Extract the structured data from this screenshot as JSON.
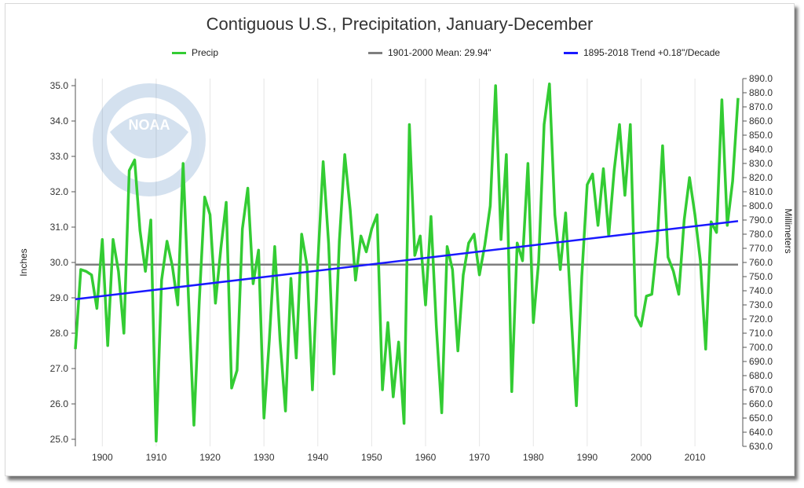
{
  "chart_data": {
    "type": "line",
    "title": "Contiguous U.S., Precipitation, January-December",
    "ylabel": "Inches",
    "ylabel_right": "Millimeters",
    "xlim": [
      1895,
      2018
    ],
    "ylim": [
      24.8,
      35.2
    ],
    "ylim_right_mm": [
      630.0,
      890.0
    ],
    "x_ticks": [
      1900,
      1910,
      1920,
      1930,
      1940,
      1950,
      1960,
      1970,
      1980,
      1990,
      2000,
      2010
    ],
    "y_ticks": [
      "25.0",
      "26.0",
      "27.0",
      "28.0",
      "29.0",
      "30.0",
      "31.0",
      "32.0",
      "33.0",
      "34.0",
      "35.0"
    ],
    "y_ticks_right": [
      "630.0",
      "640.0",
      "650.0",
      "660.0",
      "670.0",
      "680.0",
      "690.0",
      "700.0",
      "710.0",
      "720.0",
      "730.0",
      "740.0",
      "750.0",
      "760.0",
      "770.0",
      "780.0",
      "790.0",
      "800.0",
      "810.0",
      "820.0",
      "830.0",
      "840.0",
      "850.0",
      "860.0",
      "870.0",
      "880.0",
      "890.0"
    ],
    "grid": "vertical",
    "legend_position": "top",
    "series": [
      {
        "name": "Precip",
        "color": "#33cc33",
        "x": [
          1895,
          1896,
          1897,
          1898,
          1899,
          1900,
          1901,
          1902,
          1903,
          1904,
          1905,
          1906,
          1907,
          1908,
          1909,
          1910,
          1911,
          1912,
          1913,
          1914,
          1915,
          1916,
          1917,
          1918,
          1919,
          1920,
          1921,
          1922,
          1923,
          1924,
          1925,
          1926,
          1927,
          1928,
          1929,
          1930,
          1931,
          1932,
          1933,
          1934,
          1935,
          1936,
          1937,
          1938,
          1939,
          1940,
          1941,
          1942,
          1943,
          1944,
          1945,
          1946,
          1947,
          1948,
          1949,
          1950,
          1951,
          1952,
          1953,
          1954,
          1955,
          1956,
          1957,
          1958,
          1959,
          1960,
          1961,
          1962,
          1963,
          1964,
          1965,
          1966,
          1967,
          1968,
          1969,
          1970,
          1971,
          1972,
          1973,
          1974,
          1975,
          1976,
          1977,
          1978,
          1979,
          1980,
          1981,
          1982,
          1983,
          1984,
          1985,
          1986,
          1987,
          1988,
          1989,
          1990,
          1991,
          1992,
          1993,
          1994,
          1995,
          1996,
          1997,
          1998,
          1999,
          2000,
          2001,
          2002,
          2003,
          2004,
          2005,
          2006,
          2007,
          2008,
          2009,
          2010,
          2011,
          2012,
          2013,
          2014,
          2015,
          2016,
          2017,
          2018
        ],
        "values": [
          27.55,
          29.8,
          29.75,
          29.65,
          28.7,
          30.65,
          27.65,
          30.65,
          29.75,
          28.0,
          32.6,
          32.9,
          30.9,
          29.75,
          31.2,
          24.95,
          29.5,
          30.6,
          29.9,
          28.8,
          32.8,
          29.0,
          25.4,
          28.9,
          31.85,
          31.35,
          28.85,
          30.4,
          31.7,
          26.45,
          26.95,
          30.95,
          32.1,
          29.4,
          30.35,
          25.6,
          27.8,
          30.45,
          27.8,
          25.8,
          29.55,
          27.3,
          30.8,
          29.9,
          26.4,
          30.0,
          32.85,
          30.55,
          26.85,
          30.6,
          33.05,
          31.5,
          29.5,
          30.75,
          30.3,
          30.95,
          31.35,
          26.4,
          28.3,
          26.2,
          27.75,
          25.45,
          33.9,
          30.2,
          30.75,
          28.8,
          31.3,
          28.2,
          25.75,
          30.45,
          29.8,
          27.5,
          29.65,
          30.55,
          30.8,
          29.65,
          30.5,
          31.6,
          35.0,
          30.65,
          33.05,
          26.35,
          30.55,
          30.05,
          32.8,
          28.3,
          30.05,
          33.9,
          35.05,
          31.35,
          29.8,
          31.4,
          28.6,
          25.95,
          29.6,
          32.2,
          32.5,
          31.05,
          32.65,
          30.75,
          32.6,
          33.9,
          31.9,
          33.9,
          28.5,
          28.2,
          29.05,
          29.1,
          30.6,
          33.3,
          30.15,
          29.75,
          29.1,
          31.2,
          32.4,
          31.35,
          30.05,
          27.55,
          31.15,
          30.85,
          34.6,
          31.05,
          32.3,
          34.65
        ]
      },
      {
        "name": "1901-2000 Mean: 29.94\"",
        "color": "#7f7f7f",
        "value": 29.94
      },
      {
        "name": "1895-2018 Trend +0.18\"/Decade",
        "color": "#1a1aff",
        "x": [
          1895,
          2018
        ],
        "values": [
          28.96,
          31.17
        ]
      }
    ]
  },
  "watermark_text": "NATIONAL OCEANIC AND ATMOSPHERIC ADMINISTRATION · U.S. DEPARTMENT OF COMMERCE · NOAA"
}
